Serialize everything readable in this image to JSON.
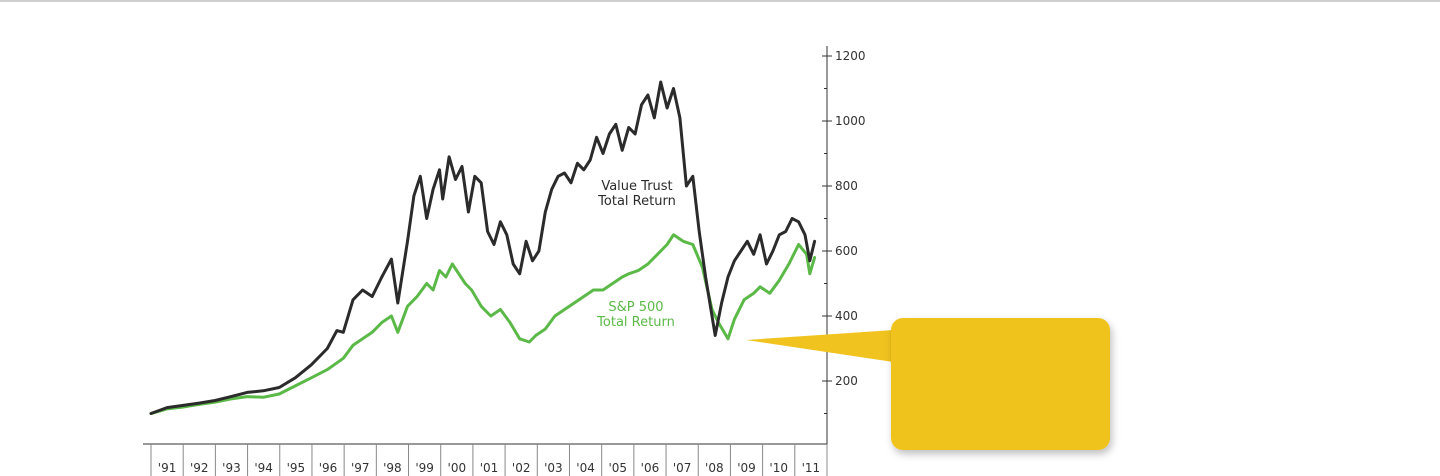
{
  "colors": {
    "value_trust": "#2b2b2b",
    "sp500": "#5bb947",
    "axis": "#333333",
    "callout": "#f0c31e",
    "top_rule": "#cfcfcf"
  },
  "chart_data": {
    "type": "line",
    "title": "",
    "xlabel": "",
    "ylabel": "",
    "x_tick_labels": [
      "'91",
      "'92",
      "'93",
      "'94",
      "'95",
      "'96",
      "'97",
      "'98",
      "'99",
      "'00",
      "'01",
      "'02",
      "'03",
      "'04",
      "'05",
      "'06",
      "'07",
      "'08",
      "'09",
      "'10",
      "'11"
    ],
    "xlim": [
      1991.0,
      2011.9
    ],
    "ylim": [
      0,
      1200
    ],
    "y_ticks": [
      200,
      400,
      600,
      800,
      1000,
      1200
    ],
    "y_axis_side": "right",
    "grid": false,
    "legend": "inline labels near lines",
    "series": [
      {
        "name": "Value Trust Total Return",
        "label_lines": [
          "Value Trust",
          "Total Return"
        ],
        "color": "#2b2b2b",
        "points": [
          [
            1991.0,
            100
          ],
          [
            1991.5,
            118
          ],
          [
            1992.0,
            125
          ],
          [
            1992.5,
            132
          ],
          [
            1993.0,
            140
          ],
          [
            1993.5,
            152
          ],
          [
            1994.0,
            165
          ],
          [
            1994.5,
            170
          ],
          [
            1995.0,
            180
          ],
          [
            1995.5,
            210
          ],
          [
            1996.0,
            250
          ],
          [
            1996.5,
            300
          ],
          [
            1996.8,
            355
          ],
          [
            1997.0,
            350
          ],
          [
            1997.3,
            450
          ],
          [
            1997.6,
            480
          ],
          [
            1997.9,
            460
          ],
          [
            1998.2,
            520
          ],
          [
            1998.5,
            575
          ],
          [
            1998.7,
            440
          ],
          [
            1999.0,
            630
          ],
          [
            1999.2,
            770
          ],
          [
            1999.4,
            830
          ],
          [
            1999.6,
            700
          ],
          [
            1999.8,
            790
          ],
          [
            2000.0,
            850
          ],
          [
            2000.1,
            760
          ],
          [
            2000.3,
            890
          ],
          [
            2000.5,
            820
          ],
          [
            2000.7,
            860
          ],
          [
            2000.9,
            720
          ],
          [
            2001.1,
            830
          ],
          [
            2001.3,
            810
          ],
          [
            2001.5,
            660
          ],
          [
            2001.7,
            620
          ],
          [
            2001.9,
            690
          ],
          [
            2002.1,
            650
          ],
          [
            2002.3,
            560
          ],
          [
            2002.5,
            530
          ],
          [
            2002.7,
            630
          ],
          [
            2002.9,
            570
          ],
          [
            2003.1,
            600
          ],
          [
            2003.3,
            720
          ],
          [
            2003.5,
            790
          ],
          [
            2003.7,
            830
          ],
          [
            2003.9,
            840
          ],
          [
            2004.1,
            810
          ],
          [
            2004.3,
            870
          ],
          [
            2004.5,
            850
          ],
          [
            2004.7,
            880
          ],
          [
            2004.9,
            950
          ],
          [
            2005.1,
            900
          ],
          [
            2005.3,
            960
          ],
          [
            2005.5,
            990
          ],
          [
            2005.7,
            910
          ],
          [
            2005.9,
            980
          ],
          [
            2006.1,
            960
          ],
          [
            2006.3,
            1050
          ],
          [
            2006.5,
            1080
          ],
          [
            2006.7,
            1010
          ],
          [
            2006.9,
            1120
          ],
          [
            2007.1,
            1040
          ],
          [
            2007.3,
            1100
          ],
          [
            2007.5,
            1010
          ],
          [
            2007.7,
            800
          ],
          [
            2007.9,
            830
          ],
          [
            2008.1,
            660
          ],
          [
            2008.3,
            520
          ],
          [
            2008.5,
            400
          ],
          [
            2008.6,
            340
          ],
          [
            2008.8,
            440
          ],
          [
            2009.0,
            520
          ],
          [
            2009.2,
            570
          ],
          [
            2009.4,
            600
          ],
          [
            2009.6,
            630
          ],
          [
            2009.8,
            590
          ],
          [
            2010.0,
            650
          ],
          [
            2010.2,
            560
          ],
          [
            2010.4,
            600
          ],
          [
            2010.6,
            650
          ],
          [
            2010.8,
            660
          ],
          [
            2011.0,
            700
          ],
          [
            2011.2,
            690
          ],
          [
            2011.4,
            650
          ],
          [
            2011.55,
            570
          ],
          [
            2011.7,
            630
          ]
        ]
      },
      {
        "name": "S&P 500 Total Return",
        "label_lines": [
          "S&P 500",
          "Total Return"
        ],
        "color": "#5bb947",
        "points": [
          [
            1991.0,
            100
          ],
          [
            1991.5,
            114
          ],
          [
            1992.0,
            120
          ],
          [
            1992.5,
            128
          ],
          [
            1993.0,
            135
          ],
          [
            1993.5,
            145
          ],
          [
            1994.0,
            152
          ],
          [
            1994.5,
            150
          ],
          [
            1995.0,
            160
          ],
          [
            1995.5,
            185
          ],
          [
            1996.0,
            210
          ],
          [
            1996.5,
            235
          ],
          [
            1997.0,
            270
          ],
          [
            1997.3,
            310
          ],
          [
            1997.6,
            330
          ],
          [
            1997.9,
            350
          ],
          [
            1998.2,
            380
          ],
          [
            1998.5,
            400
          ],
          [
            1998.7,
            350
          ],
          [
            1999.0,
            430
          ],
          [
            1999.3,
            460
          ],
          [
            1999.6,
            500
          ],
          [
            1999.8,
            480
          ],
          [
            2000.0,
            540
          ],
          [
            2000.2,
            520
          ],
          [
            2000.4,
            560
          ],
          [
            2000.6,
            530
          ],
          [
            2000.8,
            500
          ],
          [
            2001.0,
            480
          ],
          [
            2001.3,
            430
          ],
          [
            2001.6,
            400
          ],
          [
            2001.9,
            420
          ],
          [
            2002.2,
            380
          ],
          [
            2002.5,
            330
          ],
          [
            2002.8,
            320
          ],
          [
            2003.0,
            340
          ],
          [
            2003.3,
            360
          ],
          [
            2003.6,
            400
          ],
          [
            2003.9,
            420
          ],
          [
            2004.2,
            440
          ],
          [
            2004.5,
            460
          ],
          [
            2004.8,
            480
          ],
          [
            2005.1,
            480
          ],
          [
            2005.4,
            500
          ],
          [
            2005.7,
            520
          ],
          [
            2005.9,
            530
          ],
          [
            2006.2,
            540
          ],
          [
            2006.5,
            560
          ],
          [
            2006.8,
            590
          ],
          [
            2007.1,
            620
          ],
          [
            2007.3,
            650
          ],
          [
            2007.6,
            630
          ],
          [
            2007.9,
            620
          ],
          [
            2008.2,
            550
          ],
          [
            2008.5,
            420
          ],
          [
            2008.7,
            380
          ],
          [
            2009.0,
            330
          ],
          [
            2009.2,
            390
          ],
          [
            2009.5,
            450
          ],
          [
            2009.8,
            470
          ],
          [
            2010.0,
            490
          ],
          [
            2010.3,
            470
          ],
          [
            2010.6,
            510
          ],
          [
            2010.9,
            560
          ],
          [
            2011.2,
            620
          ],
          [
            2011.45,
            590
          ],
          [
            2011.55,
            530
          ],
          [
            2011.7,
            580
          ]
        ]
      }
    ]
  }
}
